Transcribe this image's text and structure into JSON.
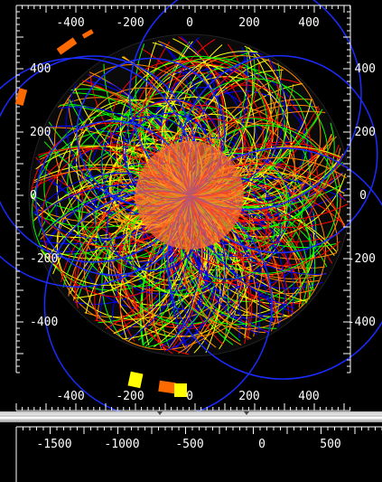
{
  "theme": {
    "background": "#000000",
    "ruler_color": "#ffffff",
    "splitter_color": "#cfcfcf",
    "track_colors": [
      "#ff0000",
      "#ff8800",
      "#ffff00",
      "#00ff00",
      "#0000ff",
      "#7fa0ff"
    ],
    "hit_colors": [
      "#ff6a00",
      "#ffff00",
      "#ffffff"
    ]
  },
  "top_view": {
    "x_axis_top": {
      "ticks": [
        "-400",
        "-200",
        "0",
        "200",
        "400"
      ]
    },
    "x_axis_bottom": {
      "ticks": [
        "-400",
        "-200",
        "0",
        "200",
        "400"
      ]
    },
    "y_axis_left": {
      "ticks": [
        "400",
        "200",
        "0",
        "-200",
        "-400"
      ]
    },
    "y_axis_right": {
      "ticks": [
        "400",
        "200",
        "0",
        "-200",
        "-400"
      ]
    }
  },
  "side_view": {
    "x_axis": {
      "ticks": [
        "-1500",
        "-1000",
        "-500",
        "0",
        "500"
      ]
    }
  }
}
